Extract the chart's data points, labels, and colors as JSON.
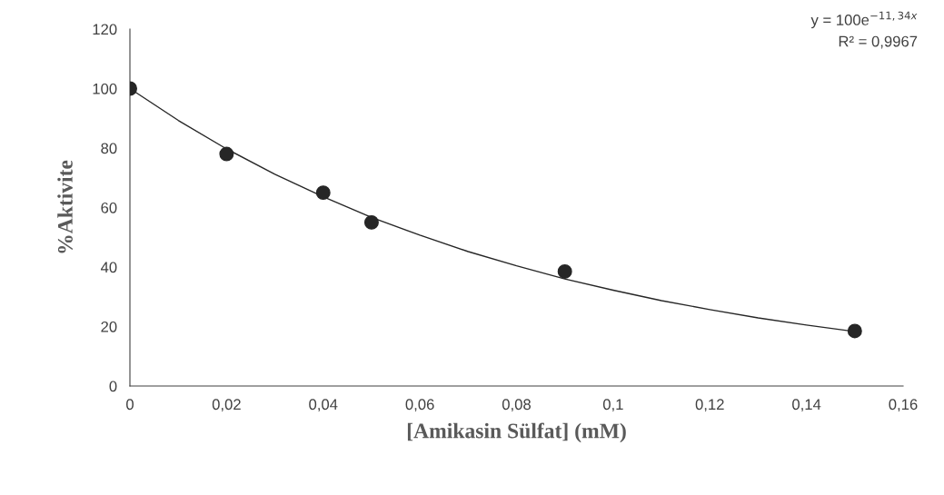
{
  "chart_data": {
    "type": "scatter",
    "xlabel": "[Amikasin Sülfat] (mM)",
    "ylabel": "%Aktivite",
    "annotations": [
      "y = 100e$^{−11,34x}$",
      "R² = 0,9967"
    ],
    "series": [
      {
        "color": "#262626",
        "marker": "circle",
        "x": [
          0,
          0.02,
          0.04,
          0.05,
          0.09,
          0.15
        ],
        "values": [
          100,
          78,
          65,
          55,
          38.5,
          18.5
        ]
      },
      {
        "type": "line",
        "color": "#262626",
        "marker": "none",
        "line_style": "solid",
        "x": [
          0,
          0.01,
          0.02,
          0.03,
          0.04,
          0.05,
          0.06,
          0.07,
          0.08,
          0.09,
          0.1,
          0.11,
          0.12,
          0.13,
          0.14,
          0.15
        ],
        "values": [
          100,
          89.3,
          79.7,
          71.2,
          63.6,
          56.7,
          50.7,
          45.2,
          40.4,
          36.0,
          32.2,
          28.7,
          25.7,
          22.9,
          20.5,
          18.3
        ]
      }
    ],
    "xlim": [
      0,
      0.16
    ],
    "xticks": [
      0,
      {
        "value": 0.02,
        "label": "0,02"
      },
      {
        "value": 0.04,
        "label": "0,04"
      },
      {
        "value": 0.06,
        "label": "0,06"
      },
      {
        "value": 0.08,
        "label": "0,08"
      },
      {
        "value": 0.1,
        "label": "0,1"
      },
      {
        "value": 0.12,
        "label": "0,12"
      },
      {
        "value": 0.14,
        "label": "0,14"
      },
      {
        "value": 0.16,
        "label": "0,16"
      }
    ],
    "ylim": [
      0,
      120
    ],
    "yticks": [
      0,
      20,
      40,
      60,
      80,
      100,
      120
    ],
    "grid": false,
    "legend": false
  }
}
